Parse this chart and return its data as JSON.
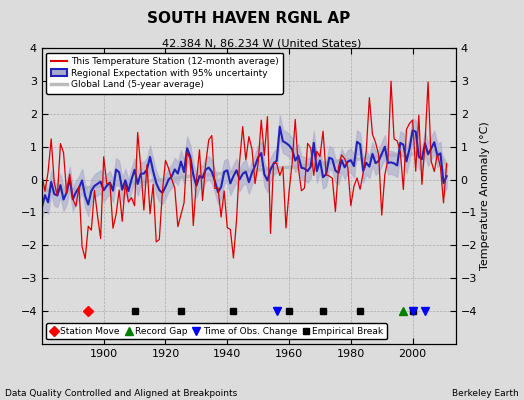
{
  "title": "SOUTH HAVEN RGNL AP",
  "subtitle": "42.384 N, 86.234 W (United States)",
  "xlabel_bottom": "Data Quality Controlled and Aligned at Breakpoints",
  "xlabel_right": "Berkeley Earth",
  "ylabel": "Temperature Anomaly (°C)",
  "year_start": 1880,
  "year_end": 2011,
  "ylim": [
    -5,
    4
  ],
  "yticks": [
    -4,
    -3,
    -2,
    -1,
    0,
    1,
    2,
    3,
    4
  ],
  "xticks": [
    1900,
    1920,
    1940,
    1960,
    1980,
    2000
  ],
  "bg_color": "#dcdcdc",
  "plot_bg_color": "#dcdcdc",
  "station_color": "#dd0000",
  "regional_color": "#2222bb",
  "regional_fill_color": "#aaaacc",
  "global_color": "#bbbbbb",
  "emp_break_years": [
    1910,
    1925,
    1942,
    1960,
    1971,
    1983,
    2000
  ],
  "obs_change_years": [
    1956,
    2000,
    2004
  ],
  "record_gap_years": [
    1997
  ],
  "station_move_years": [
    1895
  ],
  "legend_items": [
    {
      "label": "This Temperature Station (12-month average)",
      "color": "#dd0000",
      "lw": 1.5
    },
    {
      "label": "Regional Expectation with 95% uncertainty",
      "color": "#2222bb",
      "lw": 2
    },
    {
      "label": "Global Land (5-year average)",
      "color": "#bbbbbb",
      "lw": 2
    }
  ]
}
